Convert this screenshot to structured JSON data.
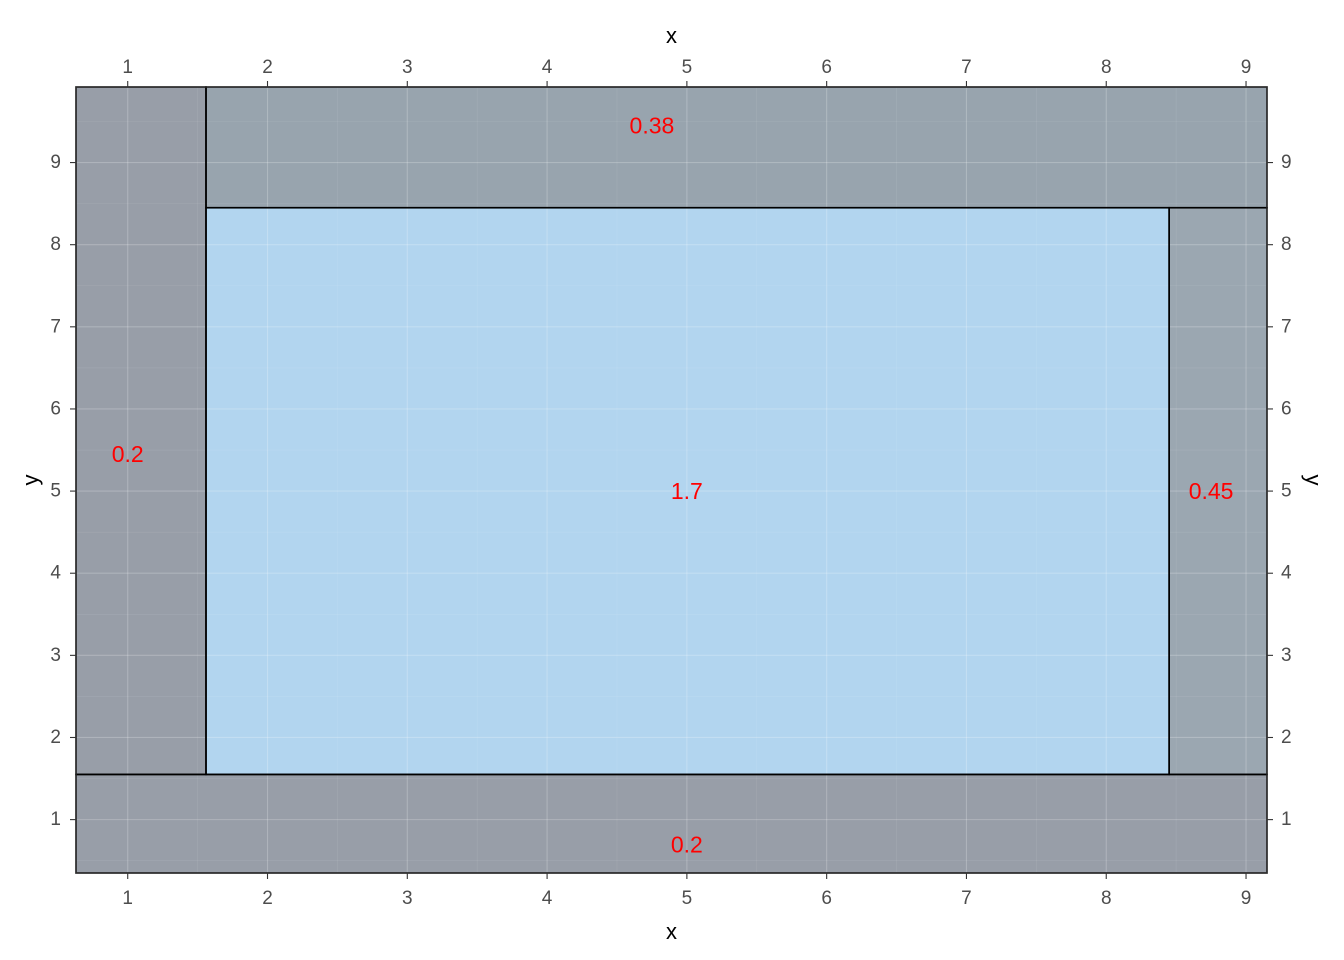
{
  "chart_data": {
    "type": "heatmap",
    "xlabel": "x",
    "ylabel": "y",
    "xlim": [
      0.63,
      9.15
    ],
    "ylim": [
      0.35,
      9.92
    ],
    "x_ticks": [
      1,
      2,
      3,
      4,
      5,
      6,
      7,
      8,
      9
    ],
    "y_ticks": [
      1,
      2,
      3,
      4,
      5,
      6,
      7,
      8,
      9
    ],
    "axes_mirrored": true,
    "grid": true,
    "regions": [
      {
        "name": "center",
        "label": "1.7",
        "x0": 1.56,
        "x1": 8.45,
        "y0": 1.55,
        "y1": 8.45,
        "fill": "#b2d5ef",
        "label_x": 5.0,
        "label_y": 5.0
      },
      {
        "name": "left",
        "label": "0.2",
        "x0": 0.63,
        "x1": 1.56,
        "y0": 1.55,
        "y1": 9.92,
        "fill": "#989ea8",
        "label_x": 1.0,
        "label_y": 5.45
      },
      {
        "name": "top",
        "label": "0.38",
        "x0": 1.56,
        "x1": 9.15,
        "y0": 8.45,
        "y1": 9.92,
        "fill": "#98a4ae",
        "label_x": 4.75,
        "label_y": 9.45
      },
      {
        "name": "right",
        "label": "0.45",
        "x0": 8.45,
        "x1": 9.15,
        "y0": 1.55,
        "y1": 8.45,
        "fill": "#9ba7b1",
        "label_x": 8.75,
        "label_y": 5.0
      },
      {
        "name": "bottom",
        "label": "0.2",
        "x0": 0.63,
        "x1": 9.15,
        "y0": 0.35,
        "y1": 1.55,
        "fill": "#989ea8",
        "label_x": 5.0,
        "label_y": 0.7
      }
    ]
  }
}
